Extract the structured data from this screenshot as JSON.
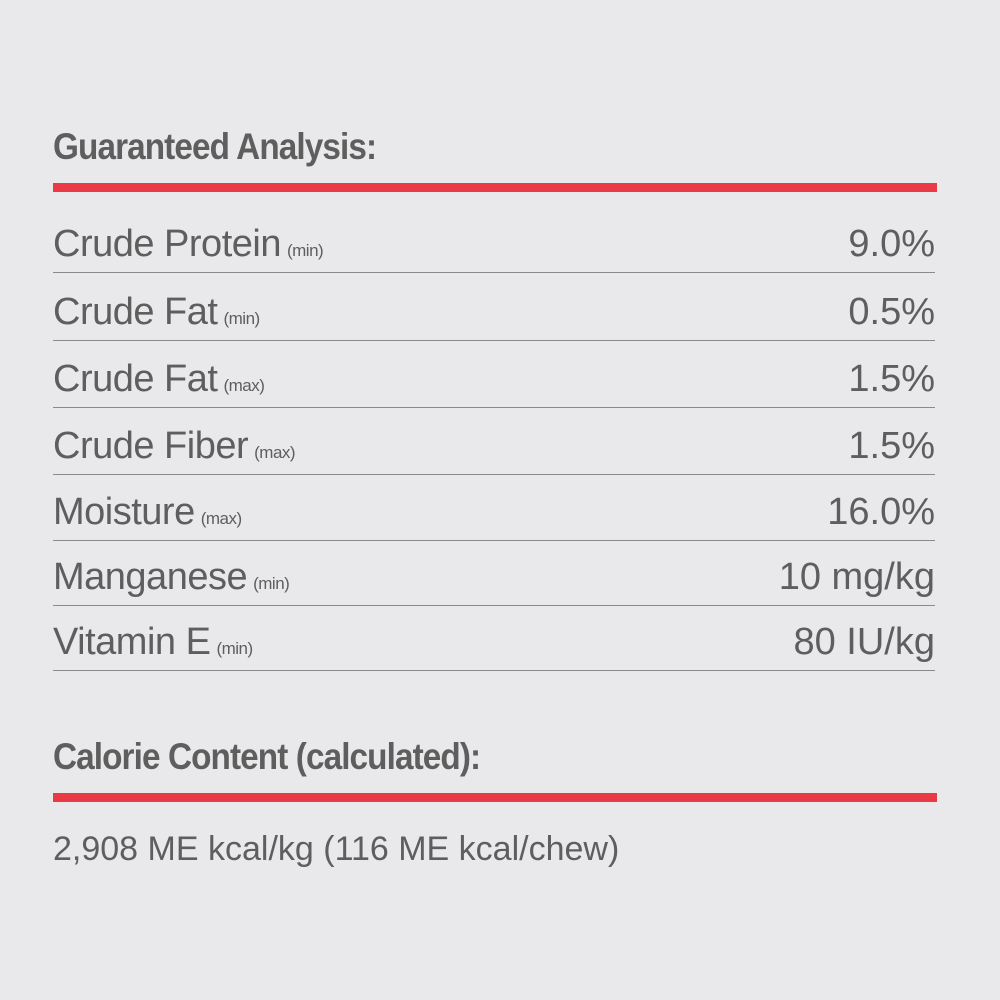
{
  "analysis": {
    "title": "Guaranteed Analysis:",
    "rows": [
      {
        "name": "Crude Protein",
        "qualifier": "(min)",
        "value": "9.0%"
      },
      {
        "name": "Crude Fat",
        "qualifier": "(min)",
        "value": "0.5%"
      },
      {
        "name": "Crude Fat",
        "qualifier": "(max)",
        "value": "1.5%"
      },
      {
        "name": "Crude Fiber",
        "qualifier": "(max)",
        "value": "1.5%"
      },
      {
        "name": "Moisture",
        "qualifier": "(max)",
        "value": "16.0%"
      },
      {
        "name": "Manganese",
        "qualifier": "(min)",
        "value": "10 mg/kg"
      },
      {
        "name": "Vitamin E",
        "qualifier": "(min)",
        "value": "80 IU/kg"
      }
    ]
  },
  "calorie": {
    "title": "Calorie Content (calculated):",
    "text": "2,908 ME kcal/kg (116 ME kcal/chew)"
  }
}
